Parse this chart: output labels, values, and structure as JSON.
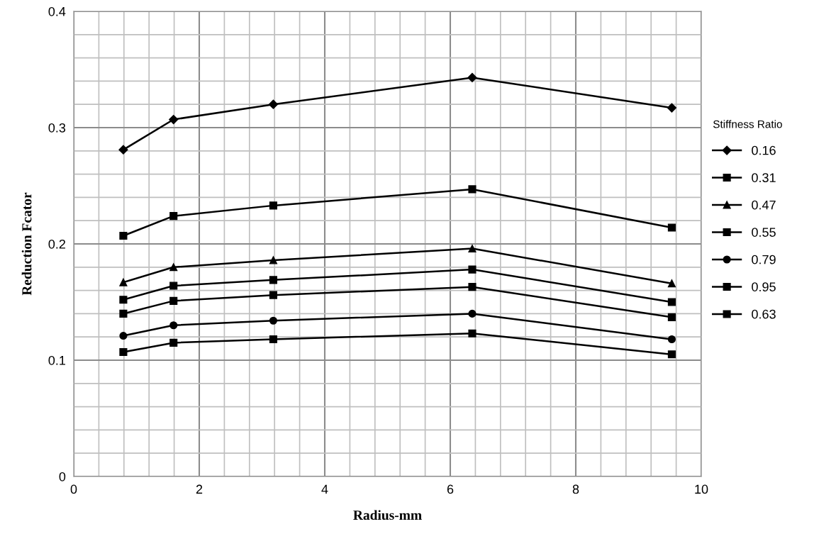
{
  "chart_data": {
    "type": "line",
    "xlabel": "Radius-mm",
    "ylabel": "Reduction Fcator",
    "legend_title": "Stiffness Ratio",
    "x": [
      0.79,
      1.59,
      3.18,
      6.35,
      9.53
    ],
    "series": [
      {
        "name": "0.16",
        "color": "#000000",
        "marker": "diamond",
        "values": [
          0.281,
          0.307,
          0.32,
          0.343,
          0.317
        ]
      },
      {
        "name": "0.31",
        "color": "#000000",
        "marker": "square",
        "values": [
          0.207,
          0.224,
          0.233,
          0.247,
          0.214
        ]
      },
      {
        "name": "0.47",
        "color": "#000000",
        "marker": "triangle",
        "values": [
          0.167,
          0.18,
          0.186,
          0.196,
          0.166
        ]
      },
      {
        "name": "0.55",
        "color": "#000000",
        "marker": "square",
        "values": [
          0.152,
          0.164,
          0.169,
          0.178,
          0.15
        ]
      },
      {
        "name": "0.79",
        "color": "#000000",
        "marker": "circle",
        "values": [
          0.121,
          0.13,
          0.134,
          0.14,
          0.118
        ]
      },
      {
        "name": "0.95",
        "color": "#000000",
        "marker": "square",
        "values": [
          0.107,
          0.115,
          0.118,
          0.123,
          0.105
        ]
      },
      {
        "name": "0.63",
        "color": "#000000",
        "marker": "square",
        "values": [
          0.14,
          0.151,
          0.156,
          0.163,
          0.137
        ]
      }
    ],
    "xlim": [
      0,
      10
    ],
    "xticks": [
      0,
      2,
      4,
      6,
      8,
      10
    ],
    "ylim": [
      0,
      0.4
    ],
    "yticks": [
      0,
      0.1,
      0.2,
      0.3,
      0.4
    ],
    "grid": true,
    "legend": "right",
    "line_style": "solid"
  }
}
